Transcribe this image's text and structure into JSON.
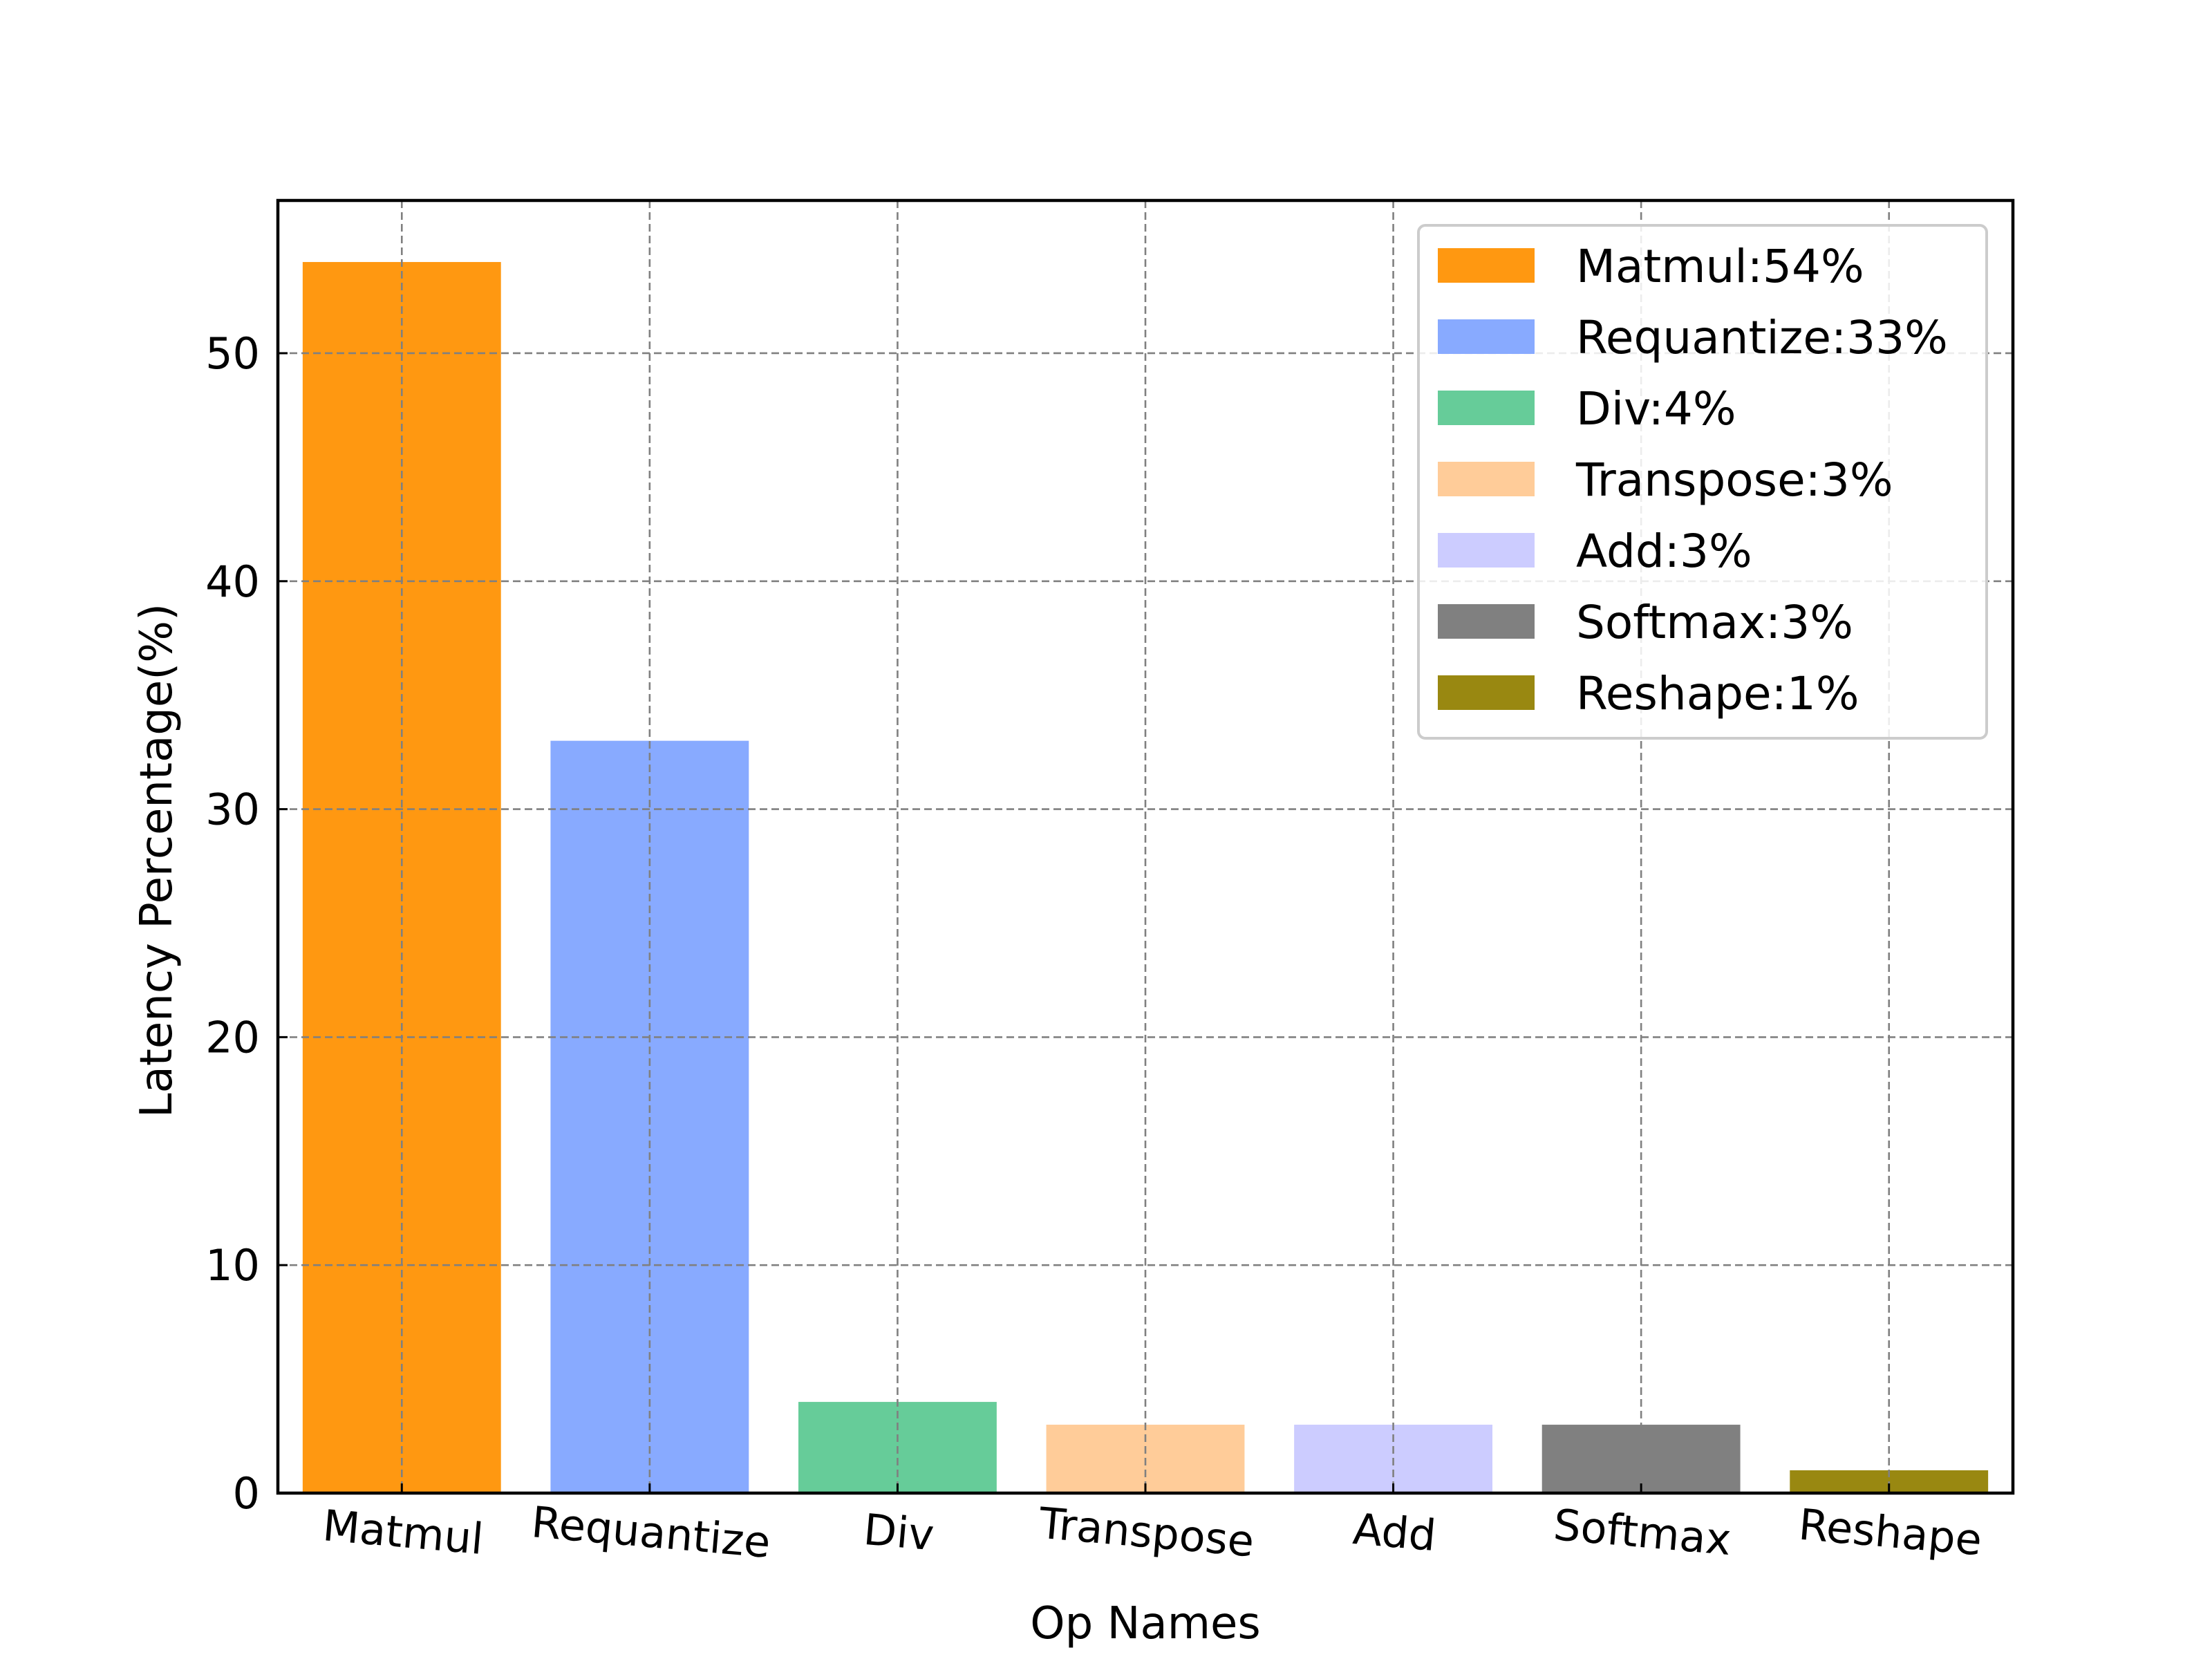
{
  "chart_data": {
    "type": "bar",
    "title": "",
    "xlabel": "Op Names",
    "ylabel": "Latency Percentage(%)",
    "categories": [
      "Matmul",
      "Requantize",
      "Div",
      "Transpose",
      "Add",
      "Softmax",
      "Reshape"
    ],
    "values": [
      54,
      33,
      4,
      3,
      3,
      3,
      1
    ],
    "colors": [
      "#ff9811",
      "#88aaff",
      "#66cc99",
      "#ffcc99",
      "#ccccff",
      "#808080",
      "#998811"
    ],
    "yticks": [
      0,
      10,
      20,
      30,
      40,
      50
    ],
    "ylim": [
      0,
      56.7
    ],
    "grid": true,
    "legend": {
      "position": "top-right",
      "entries": [
        "Matmul:54%",
        "Requantize:33%",
        "Div:4%",
        "Transpose:3%",
        "Add:3%",
        "Softmax:3%",
        "Reshape:1%"
      ]
    }
  }
}
